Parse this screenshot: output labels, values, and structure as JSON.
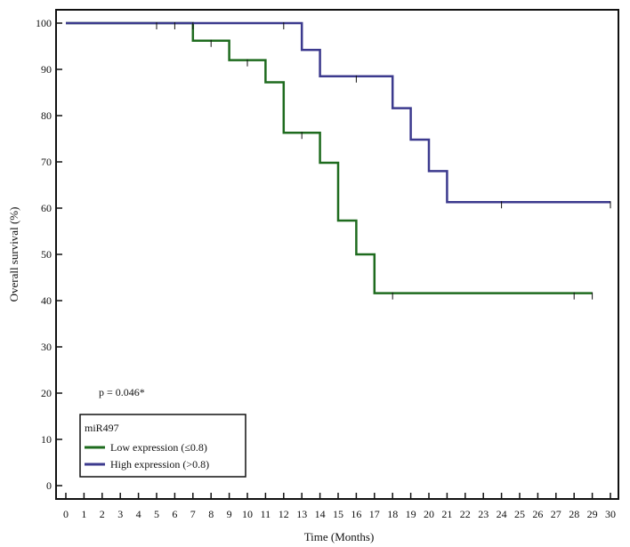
{
  "chart_data": {
    "type": "line",
    "title": "",
    "xlabel": "Time (Months)",
    "ylabel": "Overall survival (%)",
    "xlim": [
      0,
      30
    ],
    "ylim": [
      0,
      100
    ],
    "x_ticks": [
      0,
      1,
      2,
      3,
      4,
      5,
      6,
      7,
      8,
      9,
      10,
      11,
      12,
      13,
      14,
      15,
      16,
      17,
      18,
      19,
      20,
      21,
      22,
      23,
      24,
      25,
      26,
      27,
      28,
      29,
      30
    ],
    "y_ticks": [
      0,
      10,
      20,
      30,
      40,
      50,
      60,
      70,
      80,
      90,
      100
    ],
    "grid": false,
    "legend": {
      "title": "miR497",
      "placement": "bottom-left"
    },
    "annotation": "p = 0.046*",
    "series": [
      {
        "name": "Low expression (≤0.8)",
        "color": "#1e6b1e",
        "style": "step",
        "x": [
          0,
          7,
          9,
          11,
          12,
          14,
          15,
          16,
          17,
          29
        ],
        "y": [
          100,
          96.2,
          92,
          87.2,
          76.3,
          69.8,
          57.3,
          50,
          41.6,
          41.6
        ],
        "censored": [
          {
            "x": 5,
            "y": 100
          },
          {
            "x": 6,
            "y": 100
          },
          {
            "x": 8,
            "y": 96.2
          },
          {
            "x": 10,
            "y": 92
          },
          {
            "x": 13,
            "y": 76.3
          },
          {
            "x": 18,
            "y": 41.6
          },
          {
            "x": 28,
            "y": 41.6
          },
          {
            "x": 29,
            "y": 41.6
          }
        ]
      },
      {
        "name": "High expression (>0.8)",
        "color": "#3c3a8e",
        "style": "step",
        "x": [
          0,
          13,
          14,
          18,
          19,
          20,
          21,
          30
        ],
        "y": [
          100,
          94.2,
          88.5,
          81.6,
          74.8,
          68,
          61.3,
          61.3
        ],
        "censored": [
          {
            "x": 7,
            "y": 100
          },
          {
            "x": 12,
            "y": 100
          },
          {
            "x": 16,
            "y": 88.5
          },
          {
            "x": 24,
            "y": 61.3
          },
          {
            "x": 30,
            "y": 61.3
          }
        ]
      }
    ]
  }
}
